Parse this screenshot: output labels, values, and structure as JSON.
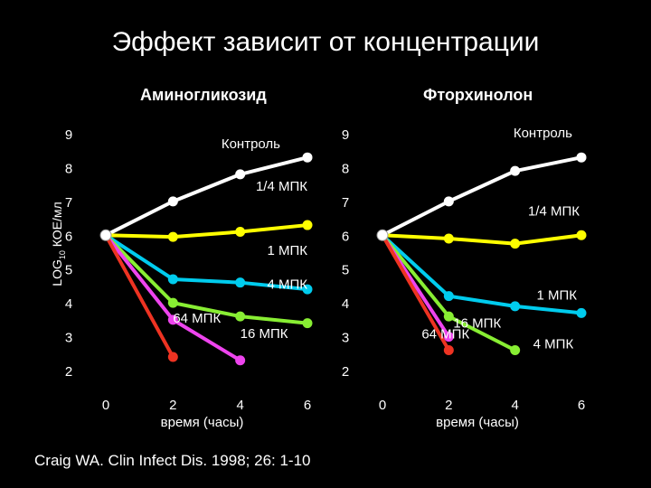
{
  "title": "Эффект зависит от концентрации",
  "credit": "Craig WA. Clin Infect Dis. 1998; 26: 1-10",
  "chart_data": [
    {
      "type": "line",
      "title": "Аминогликозид",
      "ylabel": "LOG10 КОЕ/мл",
      "xlabel": "время (часы)",
      "xlim": [
        0,
        6
      ],
      "ylim": [
        2,
        9
      ],
      "xticks": [
        "0",
        "2",
        "4",
        "6"
      ],
      "yticks": [
        "9",
        "8",
        "7",
        "6",
        "5",
        "4",
        "3",
        "2"
      ],
      "series": [
        {
          "name": "Контроль",
          "color": "#ffffff",
          "x": [
            0,
            2,
            4,
            6
          ],
          "y": [
            6.0,
            7.0,
            7.8,
            8.3
          ]
        },
        {
          "name": "1/4 МПК",
          "color": "#ffff00",
          "x": [
            0,
            2,
            4,
            6
          ],
          "y": [
            6.0,
            5.95,
            6.1,
            6.3
          ]
        },
        {
          "name": "1 МПК",
          "color": "#00ccee",
          "x": [
            0,
            2,
            4,
            6
          ],
          "y": [
            6.0,
            4.7,
            4.6,
            4.4
          ]
        },
        {
          "name": "4 МПК",
          "color": "#88ee33",
          "x": [
            0,
            2,
            4,
            6
          ],
          "y": [
            6.0,
            4.0,
            3.6,
            3.4
          ]
        },
        {
          "name": "16 МПК",
          "color": "#ee44ee",
          "x": [
            0,
            2,
            4
          ],
          "y": [
            6.0,
            3.5,
            2.3
          ]
        },
        {
          "name": "64 МПК",
          "color": "#ee3322",
          "x": [
            0,
            2
          ],
          "y": [
            6.0,
            2.4
          ]
        }
      ]
    },
    {
      "type": "line",
      "title": "Фторхинолон",
      "ylabel": "",
      "xlabel": "время (часы)",
      "xlim": [
        0,
        6
      ],
      "ylim": [
        2,
        9
      ],
      "xticks": [
        "0",
        "2",
        "4",
        "6"
      ],
      "yticks": [
        "9",
        "8",
        "7",
        "6",
        "5",
        "4",
        "3",
        "2"
      ],
      "series": [
        {
          "name": "Контроль",
          "color": "#ffffff",
          "x": [
            0,
            2,
            4,
            6
          ],
          "y": [
            6.0,
            7.0,
            7.9,
            8.3
          ]
        },
        {
          "name": "1/4 МПК",
          "color": "#ffff00",
          "x": [
            0,
            2,
            4,
            6
          ],
          "y": [
            6.0,
            5.9,
            5.75,
            6.0
          ]
        },
        {
          "name": "1 МПК",
          "color": "#00ccee",
          "x": [
            0,
            2,
            4,
            6
          ],
          "y": [
            6.0,
            4.2,
            3.9,
            3.7
          ]
        },
        {
          "name": "4 МПК",
          "color": "#88ee33",
          "x": [
            0,
            2,
            4
          ],
          "y": [
            6.0,
            3.6,
            2.6
          ]
        },
        {
          "name": "16 МПК",
          "color": "#ee44ee",
          "x": [
            0,
            2
          ],
          "y": [
            6.0,
            3.0
          ]
        },
        {
          "name": "64 МПК",
          "color": "#ee3322",
          "x": [
            0,
            2
          ],
          "y": [
            6.0,
            2.6
          ]
        }
      ]
    }
  ]
}
